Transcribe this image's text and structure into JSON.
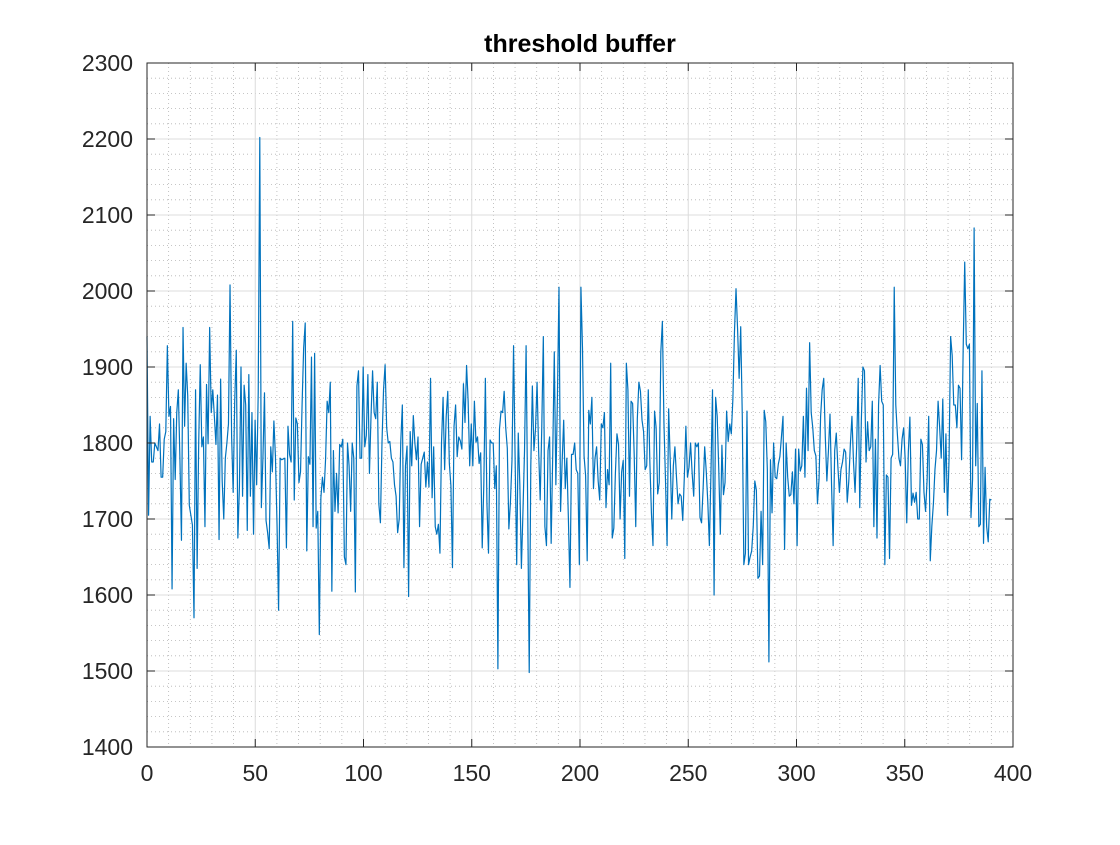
{
  "chart_data": {
    "type": "line",
    "title": "threshold buffer",
    "xlabel": "",
    "ylabel": "",
    "xlim": [
      0,
      400
    ],
    "ylim": [
      1400,
      2300
    ],
    "xticks": [
      "0",
      "50",
      "100",
      "150",
      "200",
      "250",
      "300",
      "350",
      "400"
    ],
    "yticks": [
      "1400",
      "1500",
      "1600",
      "1700",
      "1800",
      "1900",
      "2000",
      "2100",
      "2200",
      "2300"
    ],
    "grid": "on (major and minor)",
    "line_color": "#0072BD",
    "series": [
      {
        "y": [
          1940,
          1705,
          1835,
          1775,
          1775,
          1800,
          1795,
          1790,
          1825,
          1755,
          1755,
          1805,
          1815,
          1928,
          1835,
          1848,
          1608,
          1832,
          1752,
          1840,
          1870,
          1780,
          1672,
          1952,
          1822,
          1905,
          1862,
          1718,
          1705,
          1692,
          1570,
          1870,
          1635,
          1800,
          1903,
          1795,
          1808,
          1690,
          1877,
          1799,
          1952,
          1840,
          1870,
          1835,
          1798,
          1863,
          1673,
          1884,
          1750,
          1700,
          1780,
          1800,
          1825,
          2008,
          1810,
          1735,
          1856,
          1922,
          1675,
          1742,
          1900,
          1730,
          1876,
          1850,
          1685,
          1890,
          1730,
          1840,
          1680,
          1830,
          1745,
          1867,
          2202,
          1715,
          1780,
          1866,
          1698,
          1682,
          1661,
          1795,
          1762,
          1829,
          1782,
          1693,
          1580,
          1780,
          1778,
          1779,
          1780,
          1662,
          1822,
          1785,
          1775,
          1960,
          1725,
          1833,
          1825,
          1748,
          1762,
          1850,
          1925,
          1958,
          1658,
          1782,
          1772,
          1913,
          1690,
          1918,
          1688,
          1710,
          1548,
          1728,
          1755,
          1735,
          1779,
          1855,
          1840,
          1880,
          1605,
          1790,
          1710,
          1760,
          1708,
          1798,
          1795,
          1805,
          1650,
          1640,
          1800,
          1770,
          1710,
          1800,
          1780,
          1604,
          1875,
          1895,
          1780,
          1780,
          1900,
          1795,
          1810,
          1890,
          1760,
          1835,
          1895,
          1840,
          1832,
          1880,
          1720,
          1695,
          1800,
          1870,
          1903,
          1820,
          1800,
          1802,
          1780,
          1775,
          1745,
          1730,
          1682,
          1700,
          1802,
          1850,
          1636,
          1770,
          1796,
          1598,
          1815,
          1770,
          1836,
          1800,
          1778,
          1808,
          1690,
          1772,
          1780,
          1788,
          1742,
          1775,
          1742,
          1885,
          1728,
          1795,
          1690,
          1680,
          1693,
          1655,
          1800,
          1860,
          1765,
          1835,
          1868,
          1773,
          1744,
          1636,
          1822,
          1850,
          1782,
          1808,
          1803,
          1792,
          1878,
          1827,
          1902,
          1855,
          1770,
          1825,
          1770,
          1855,
          1801,
          1808,
          1773,
          1787,
          1662,
          1745,
          1885,
          1720,
          1655,
          1804,
          1800,
          1800,
          1740,
          1770,
          1503,
          1818,
          1842,
          1840,
          1868,
          1820,
          1793,
          1687,
          1722,
          1778,
          1928,
          1778,
          1640,
          1813,
          1745,
          1635,
          1710,
          1790,
          1928,
          1720,
          1498,
          1770,
          1875,
          1790,
          1818,
          1880,
          1790,
          1725,
          1820,
          1940,
          1690,
          1665,
          1790,
          1808,
          1668,
          1785,
          1920,
          1745,
          1860,
          2005,
          1710,
          1775,
          1830,
          1740,
          1780,
          1700,
          1610,
          1785,
          1785,
          1800,
          1765,
          1760,
          1640,
          2005,
          1925,
          1783,
          1757,
          1645,
          1843,
          1825,
          1860,
          1740,
          1780,
          1795,
          1750,
          1725,
          1825,
          1820,
          1840,
          1715,
          1765,
          1745,
          1905,
          1675,
          1688,
          1760,
          1812,
          1798,
          1700,
          1762,
          1777,
          1648,
          1905,
          1870,
          1730,
          1855,
          1852,
          1785,
          1690,
          1832,
          1880,
          1868,
          1830,
          1815,
          1765,
          1770,
          1870,
          1775,
          1708,
          1665,
          1842,
          1820,
          1733,
          1748,
          1920,
          1960,
          1826,
          1750,
          1665,
          1845,
          1778,
          1700,
          1770,
          1795,
          1755,
          1720,
          1733,
          1730,
          1698,
          1755,
          1822,
          1755,
          1768,
          1800,
          1760,
          1730,
          1800,
          1795,
          1800,
          1702,
          1695,
          1740,
          1795,
          1763,
          1722,
          1665,
          1760,
          1870,
          1600,
          1860,
          1835,
          1765,
          1680,
          1797,
          1732,
          1748,
          1842,
          1802,
          1825,
          1812,
          1858,
          1945,
          2003,
          1950,
          1885,
          1953,
          1836,
          1640,
          1655,
          1842,
          1640,
          1650,
          1658,
          1690,
          1750,
          1738,
          1622,
          1625,
          1710,
          1640,
          1843,
          1828,
          1765,
          1512,
          1778,
          1708,
          1800,
          1755,
          1753,
          1772,
          1782,
          1808,
          1835,
          1660,
          1800,
          1755,
          1730,
          1732,
          1762,
          1720,
          1792,
          1665,
          1792,
          1763,
          1770,
          1835,
          1755,
          1872,
          1790,
          1932,
          1840,
          1820,
          1790,
          1783,
          1720,
          1752,
          1835,
          1870,
          1885,
          1808,
          1750,
          1790,
          1838,
          1744,
          1665,
          1790,
          1813,
          1770,
          1735,
          1765,
          1775,
          1792,
          1788,
          1722,
          1750,
          1798,
          1835,
          1775,
          1735,
          1795,
          1885,
          1715,
          1830,
          1900,
          1895,
          1775,
          1828,
          1790,
          1795,
          1855,
          1690,
          1805,
          1675,
          1850,
          1902,
          1855,
          1850,
          1640,
          1758,
          1755,
          1648,
          1780,
          1785,
          2005,
          1850,
          1812,
          1780,
          1770,
          1805,
          1820,
          1778,
          1695,
          1788,
          1834,
          1718,
          1734,
          1722,
          1735,
          1700,
          1700,
          1805,
          1798,
          1735,
          1710,
          1752,
          1835,
          1645,
          1690,
          1720,
          1765,
          1790,
          1855,
          1820,
          1780,
          1858,
          1735,
          1812,
          1705,
          1780,
          1940,
          1915,
          1850,
          1850,
          1820,
          1876,
          1872,
          1778,
          1922,
          2038,
          1930,
          1924,
          1930,
          1702,
          1752,
          2083,
          1770,
          1852,
          1690,
          1693,
          1895,
          1668,
          1768,
          1690,
          1670,
          1726,
          1725
        ]
      }
    ]
  }
}
